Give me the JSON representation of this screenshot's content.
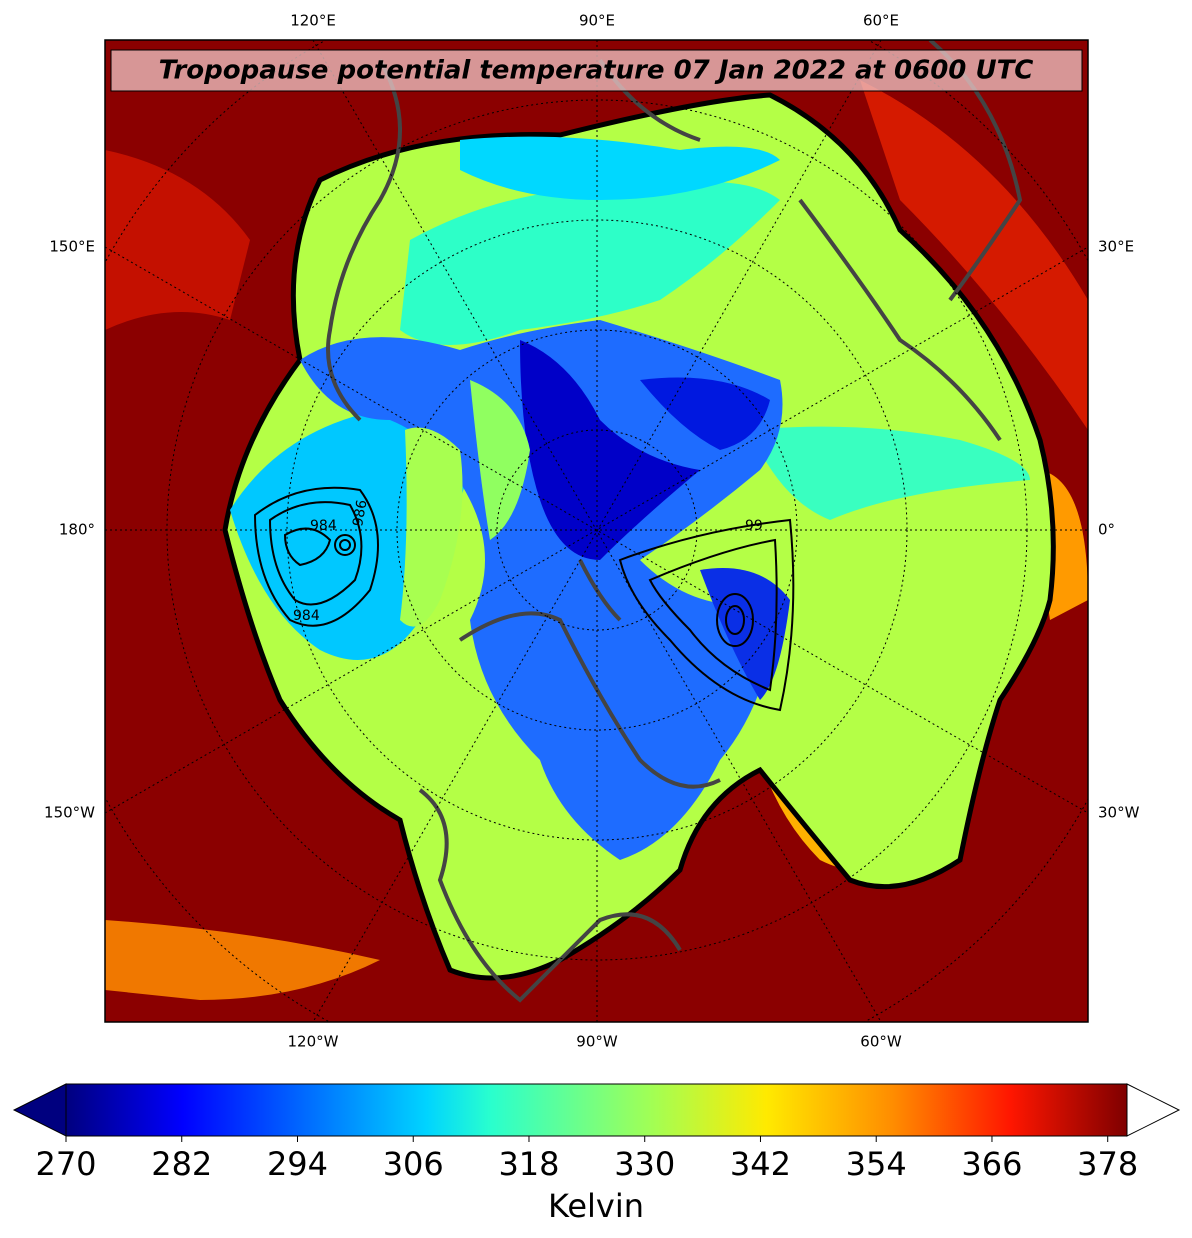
{
  "title": "Tropopause potential temperature 07 Jan 2022 at 0600 UTC",
  "longitude_labels": {
    "top": [
      "120°E",
      "90°E",
      "60°E"
    ],
    "left": [
      "150°E",
      "180°",
      "150°W"
    ],
    "right": [
      "30°E",
      "0°",
      "30°W"
    ],
    "bottom": [
      "120°W",
      "90°W",
      "60°W"
    ]
  },
  "contour_labels": [
    "984",
    "986",
    "984",
    "99"
  ],
  "colorbar": {
    "label": "Kelvin",
    "lim": [
      270,
      380
    ],
    "ticks": [
      270,
      282,
      294,
      306,
      318,
      330,
      342,
      354,
      366,
      378
    ]
  }
}
